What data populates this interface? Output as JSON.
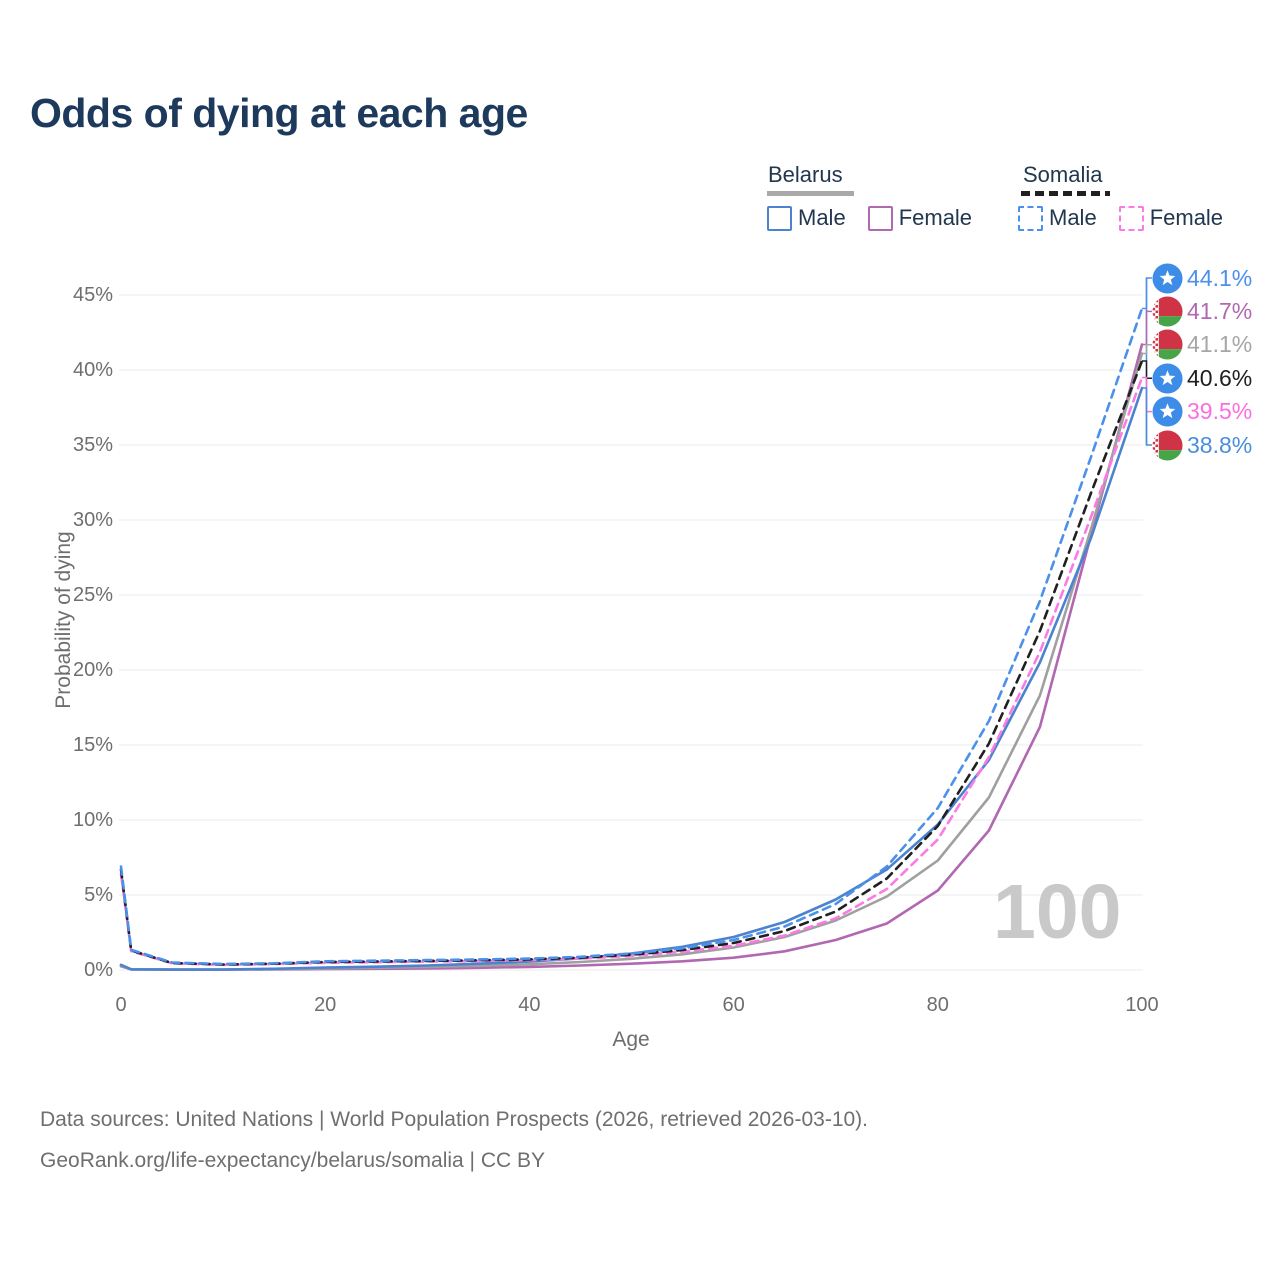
{
  "title": "Odds of dying at each age",
  "legend": {
    "groups": [
      {
        "title": "Belarus",
        "line_style": "solid",
        "underline_color": "#a9a9a9",
        "items": [
          {
            "label": "Male",
            "color": "#4c83cf"
          },
          {
            "label": "Female",
            "color": "#b168b1"
          }
        ]
      },
      {
        "title": "Somalia",
        "line_style": "dashed",
        "underline_color": "#202020",
        "items": [
          {
            "label": "Male",
            "color": "#4b90ea"
          },
          {
            "label": "Female",
            "color": "#fb7ae3"
          }
        ]
      }
    ]
  },
  "watermark": "100",
  "footer": {
    "line1": "Data sources: United Nations | World Population Prospects (2026, retrieved 2026-03-10).",
    "line2": "GeoRank.org/life-expectancy/belarus/somalia | CC BY"
  },
  "end_labels": [
    {
      "value": "44.1%",
      "series": "Somalia Male",
      "flag": "somalia",
      "color": "#4b90ea"
    },
    {
      "value": "41.7%",
      "series": "Belarus Female",
      "flag": "belarus",
      "color": "#b168b1"
    },
    {
      "value": "41.1%",
      "series": "Belarus Both",
      "flag": "belarus",
      "color": "#a6a6a6"
    },
    {
      "value": "40.6%",
      "series": "Somalia Both",
      "flag": "somalia",
      "color": "#202020"
    },
    {
      "value": "39.5%",
      "series": "Somalia Female",
      "flag": "somalia",
      "color": "#fb6ee0"
    },
    {
      "value": "38.8%",
      "series": "Belarus Male",
      "flag": "belarus",
      "color": "#4a8ed9"
    }
  ],
  "chart_data": {
    "type": "line",
    "title": "Odds of dying at each age",
    "xlabel": "Age",
    "ylabel": "Probability of dying",
    "x_ticks": [
      0,
      20,
      40,
      60,
      80,
      100
    ],
    "y_ticks": [
      "0%",
      "5%",
      "10%",
      "15%",
      "20%",
      "25%",
      "30%",
      "35%",
      "40%",
      "45%"
    ],
    "y_gridlines_pct": [
      0,
      5,
      10,
      15,
      20,
      25,
      30,
      35,
      40,
      45
    ],
    "xlim": [
      0,
      100
    ],
    "ylim_pct": [
      0,
      45
    ],
    "legend_position": "top-right",
    "grid": "horizontal",
    "x": [
      0,
      1,
      5,
      10,
      15,
      20,
      25,
      30,
      35,
      40,
      45,
      50,
      55,
      60,
      65,
      70,
      75,
      80,
      85,
      90,
      95,
      100
    ],
    "series": [
      {
        "name": "Belarus Female",
        "country": "belarus",
        "dashed": false,
        "color": "#b168b1",
        "end_pct": 41.7,
        "values": [
          0.25,
          0.04,
          0.02,
          0.02,
          0.04,
          0.06,
          0.08,
          0.11,
          0.15,
          0.21,
          0.3,
          0.42,
          0.58,
          0.82,
          1.25,
          2.0,
          3.1,
          5.3,
          9.3,
          16.2,
          29.0,
          41.7
        ]
      },
      {
        "name": "Belarus Both sexes",
        "country": "belarus",
        "dashed": false,
        "color": "#a0a0a0",
        "end_pct": 41.1,
        "values": [
          0.3,
          0.04,
          0.03,
          0.03,
          0.06,
          0.11,
          0.15,
          0.2,
          0.28,
          0.38,
          0.53,
          0.75,
          1.05,
          1.5,
          2.2,
          3.3,
          4.9,
          7.3,
          11.5,
          18.3,
          29.4,
          41.1
        ]
      },
      {
        "name": "Belarus Male",
        "country": "belarus",
        "dashed": false,
        "color": "#4c83cf",
        "end_pct": 38.8,
        "values": [
          0.35,
          0.05,
          0.03,
          0.03,
          0.08,
          0.16,
          0.22,
          0.3,
          0.42,
          0.56,
          0.78,
          1.1,
          1.55,
          2.2,
          3.2,
          4.7,
          6.7,
          9.7,
          14.0,
          20.5,
          28.8,
          38.8
        ]
      },
      {
        "name": "Somalia Female",
        "country": "somalia",
        "dashed": true,
        "color": "#fb7ae3",
        "end_pct": 39.5,
        "values": [
          6.4,
          1.25,
          0.45,
          0.35,
          0.4,
          0.48,
          0.52,
          0.56,
          0.6,
          0.66,
          0.76,
          0.94,
          1.22,
          1.62,
          2.3,
          3.45,
          5.4,
          8.7,
          14.2,
          21.2,
          30.2,
          39.5
        ]
      },
      {
        "name": "Somalia Both sexes",
        "country": "somalia",
        "dashed": true,
        "color": "#202020",
        "end_pct": 40.6,
        "values": [
          6.7,
          1.3,
          0.47,
          0.37,
          0.42,
          0.53,
          0.57,
          0.61,
          0.65,
          0.71,
          0.82,
          1.02,
          1.33,
          1.8,
          2.6,
          3.9,
          6.1,
          9.6,
          15.1,
          22.6,
          31.8,
          40.6
        ]
      },
      {
        "name": "Somalia Male",
        "country": "somalia",
        "dashed": true,
        "color": "#4b90ea",
        "end_pct": 44.1,
        "values": [
          6.9,
          1.35,
          0.5,
          0.4,
          0.45,
          0.58,
          0.62,
          0.66,
          0.7,
          0.76,
          0.88,
          1.1,
          1.45,
          2.0,
          2.9,
          4.4,
          6.9,
          10.8,
          16.6,
          24.6,
          34.2,
          44.1
        ]
      }
    ]
  }
}
